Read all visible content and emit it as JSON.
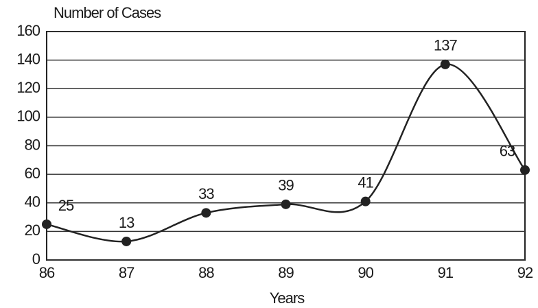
{
  "chart_data": {
    "type": "line",
    "y_label": "Number of Cases",
    "x_label": "Years",
    "categories": [
      "86",
      "87",
      "88",
      "89",
      "90",
      "91",
      "92"
    ],
    "values": [
      25,
      13,
      33,
      39,
      41,
      137,
      63
    ],
    "color": "#222222",
    "ylim": [
      0,
      160
    ],
    "yticks": [
      0,
      20,
      40,
      60,
      80,
      100,
      120,
      140,
      160
    ],
    "grid": true,
    "smooth": true
  }
}
